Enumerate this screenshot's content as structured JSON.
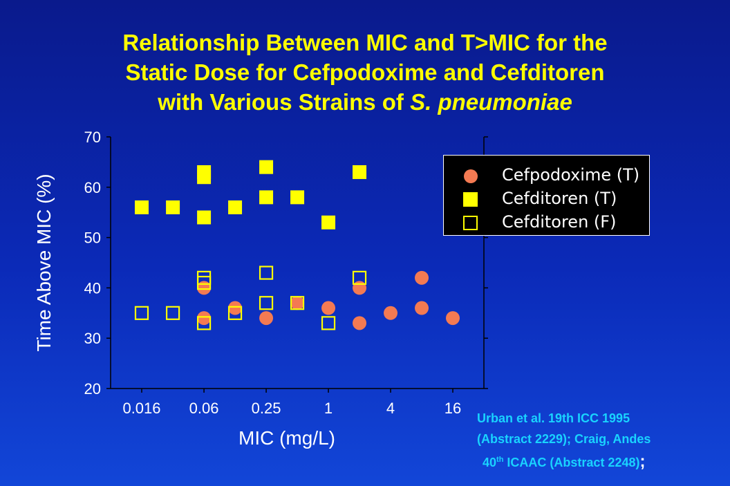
{
  "title": {
    "line1": "Relationship Between MIC and T>MIC for the",
    "line2": "Static Dose for Cefpodoxime and Cefditoren",
    "line3_prefix": "with Various Strains of ",
    "line3_italic": "S. pneumoniae"
  },
  "citation": {
    "line1": "Urban et al. 19th ICC 1995",
    "line2": "(Abstract 2229);  Craig, Andes",
    "line3_num": "40",
    "line3_sup": "th",
    "line3_rest": " ICAAC (Abstract 2248)",
    "line3_semi": ";"
  },
  "colors": {
    "background": "#0b2ab8",
    "title": "#ffff00",
    "cefpodoxime": "#f47a52",
    "cefditoren": "#ffff00",
    "citation": "#19d3ff"
  },
  "chart_data": {
    "type": "scatter",
    "title": "Relationship Between MIC and T>MIC for the Static Dose for Cefpodoxime and Cefditoren with Various Strains of S. pneumoniae",
    "xlabel": "MIC (mg/L)",
    "ylabel": "Time Above MIC (%)",
    "x_scale": "log2",
    "x_ticks": [
      "0.016",
      "0.06",
      "0.25",
      "1",
      "4",
      "16"
    ],
    "x_tick_values": [
      0.0156,
      0.0625,
      0.25,
      1,
      4,
      16
    ],
    "xlim": [
      0.0078,
      32
    ],
    "ylim": [
      20,
      70
    ],
    "y_ticks": [
      "20",
      "30",
      "40",
      "50",
      "60",
      "70"
    ],
    "grid": false,
    "legend_position": "top-right",
    "series": [
      {
        "name": "Cefpodoxime (T)",
        "marker": "filled-circle",
        "points": [
          {
            "x": 0.0625,
            "y": 40
          },
          {
            "x": 0.0625,
            "y": 34
          },
          {
            "x": 0.125,
            "y": 36
          },
          {
            "x": 0.25,
            "y": 34
          },
          {
            "x": 0.5,
            "y": 37
          },
          {
            "x": 1,
            "y": 36
          },
          {
            "x": 2,
            "y": 40
          },
          {
            "x": 2,
            "y": 33
          },
          {
            "x": 4,
            "y": 35
          },
          {
            "x": 8,
            "y": 42
          },
          {
            "x": 8,
            "y": 36
          },
          {
            "x": 16,
            "y": 34
          }
        ]
      },
      {
        "name": "Cefditoren (T)",
        "marker": "filled-square",
        "points": [
          {
            "x": 0.0156,
            "y": 56
          },
          {
            "x": 0.03125,
            "y": 56
          },
          {
            "x": 0.0625,
            "y": 63
          },
          {
            "x": 0.0625,
            "y": 62
          },
          {
            "x": 0.0625,
            "y": 54
          },
          {
            "x": 0.125,
            "y": 56
          },
          {
            "x": 0.25,
            "y": 64
          },
          {
            "x": 0.25,
            "y": 58
          },
          {
            "x": 0.5,
            "y": 58
          },
          {
            "x": 1,
            "y": 53
          },
          {
            "x": 2,
            "y": 63
          }
        ]
      },
      {
        "name": "Cefditoren (F)",
        "marker": "open-square",
        "points": [
          {
            "x": 0.0156,
            "y": 35
          },
          {
            "x": 0.03125,
            "y": 35
          },
          {
            "x": 0.0625,
            "y": 42
          },
          {
            "x": 0.0625,
            "y": 41
          },
          {
            "x": 0.0625,
            "y": 33
          },
          {
            "x": 0.125,
            "y": 35
          },
          {
            "x": 0.25,
            "y": 43
          },
          {
            "x": 0.25,
            "y": 37
          },
          {
            "x": 0.5,
            "y": 37
          },
          {
            "x": 1,
            "y": 33
          },
          {
            "x": 2,
            "y": 42
          }
        ]
      }
    ]
  }
}
